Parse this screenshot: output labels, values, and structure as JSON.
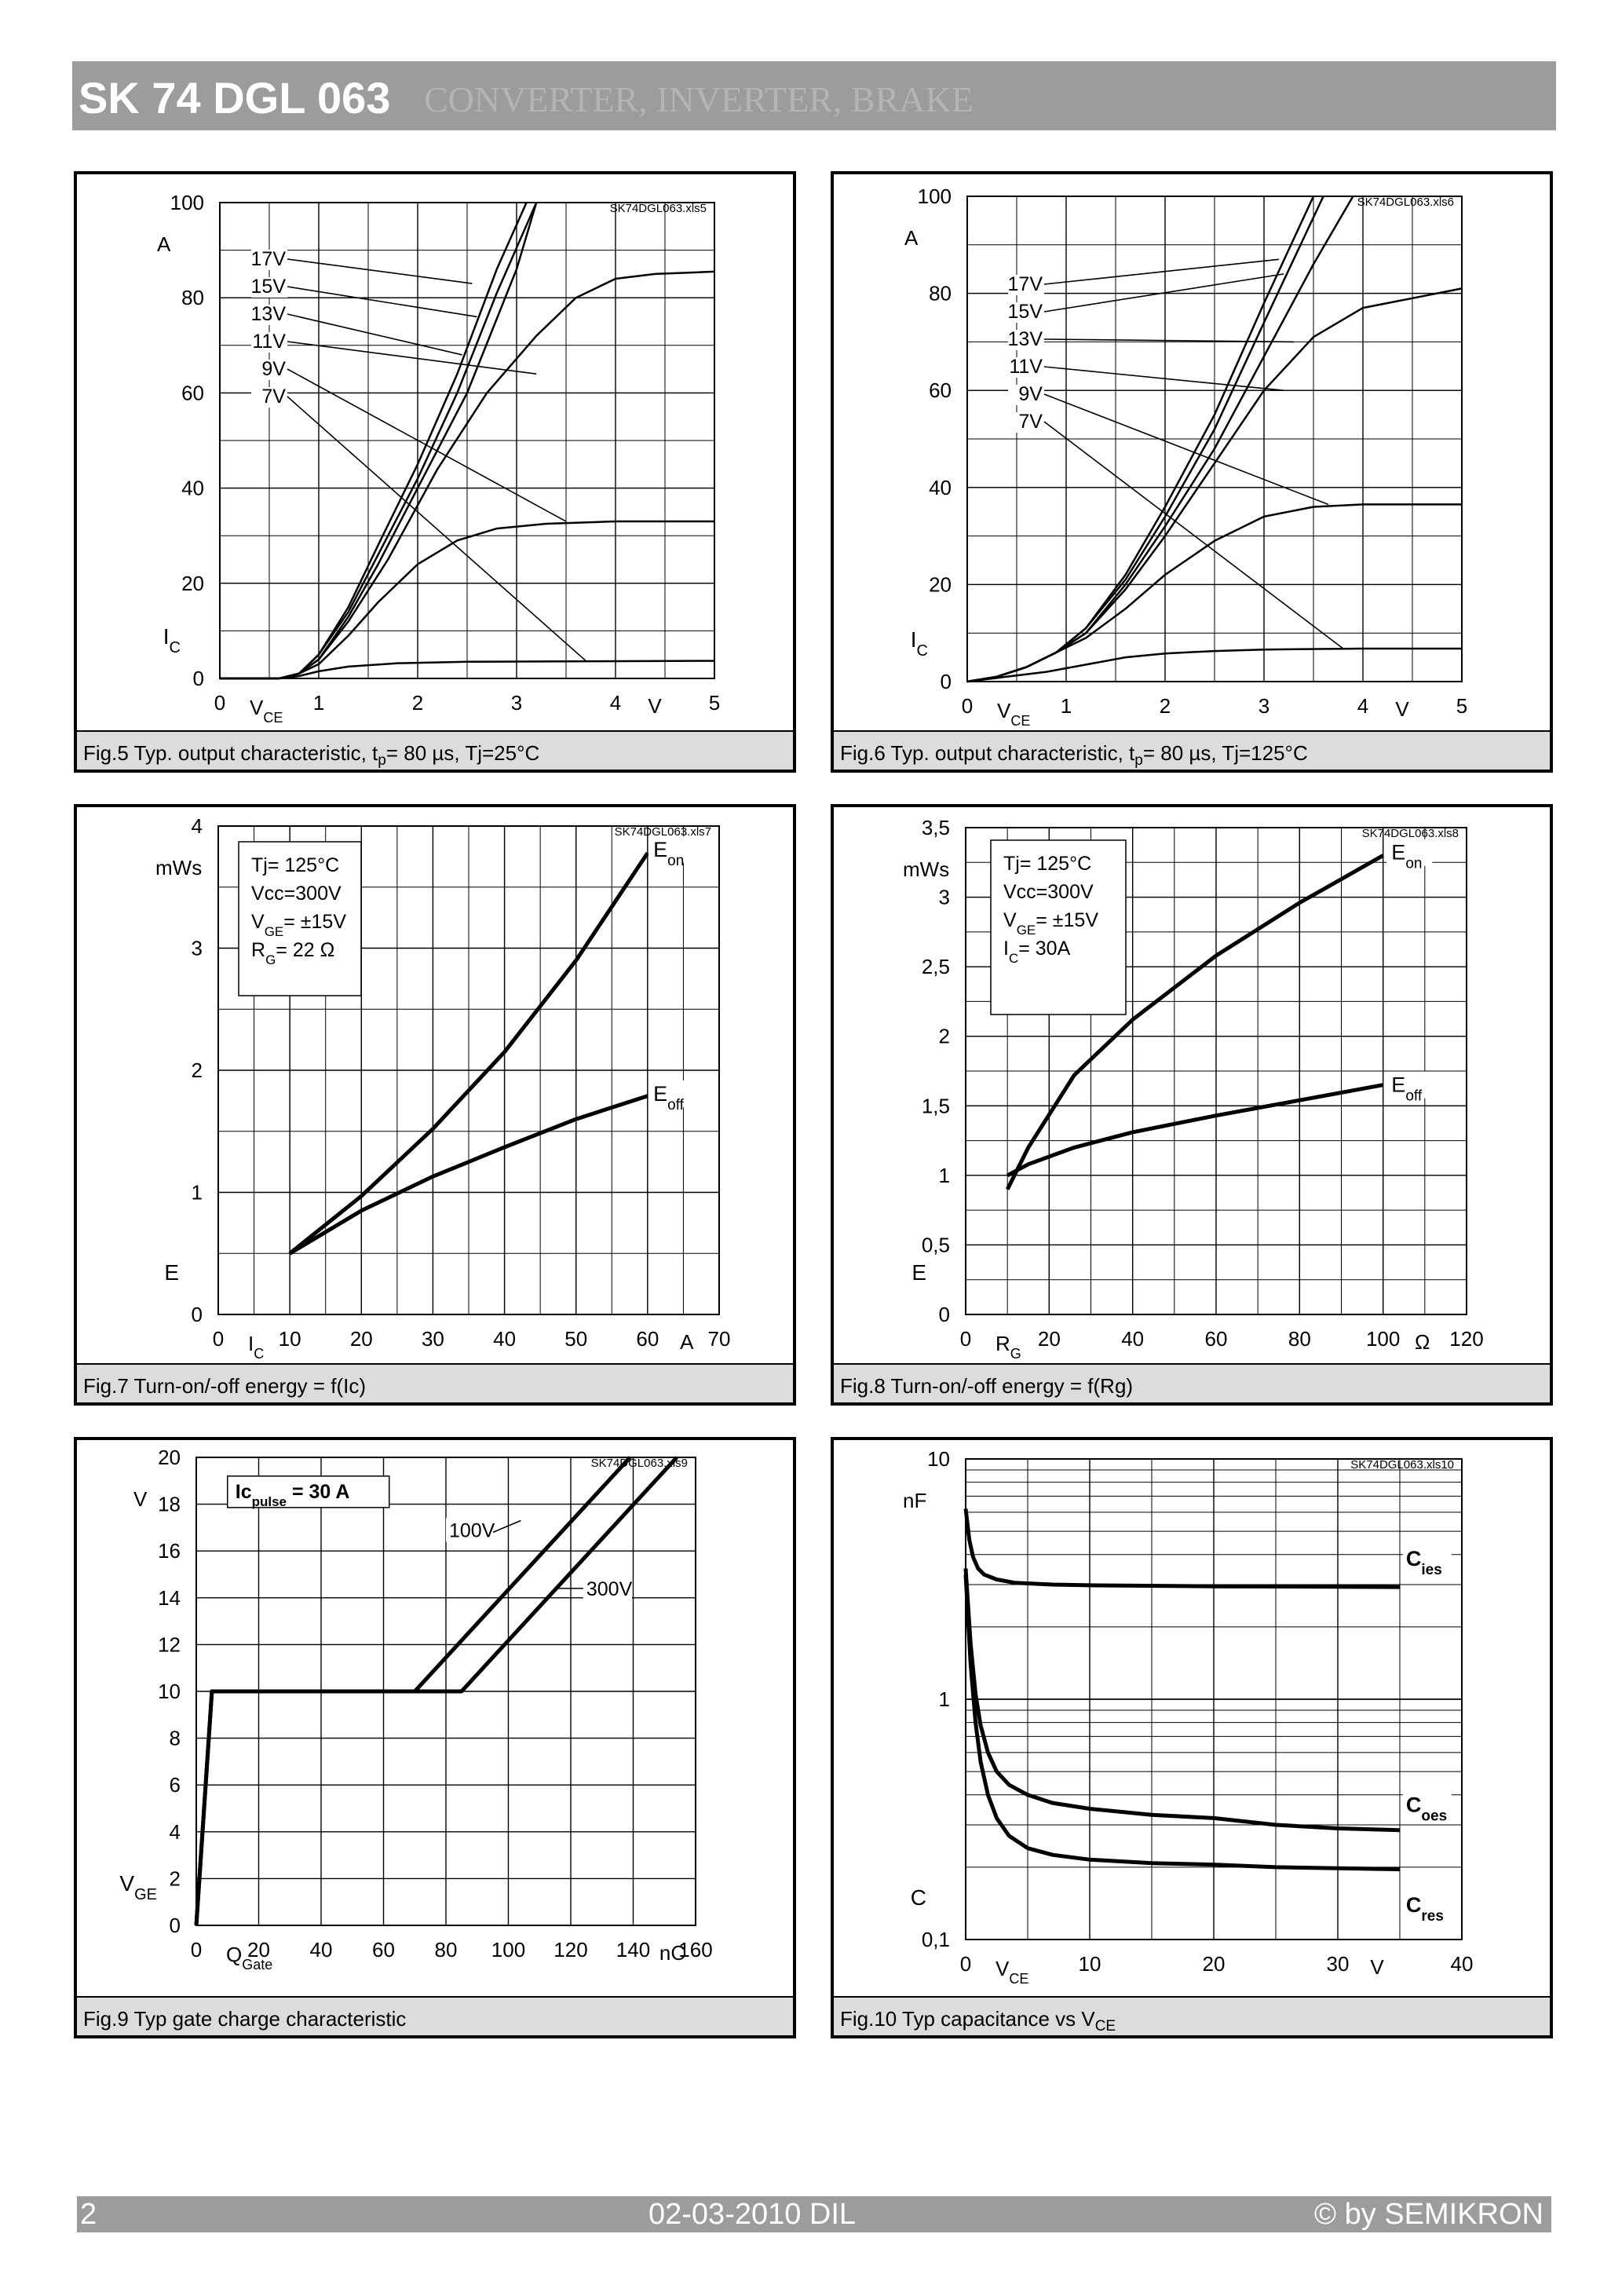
{
  "header": {
    "model": "SK 74 DGL 063",
    "title": "CONVERTER, INVERTER, BRAKE"
  },
  "footer": {
    "page": "2",
    "date": "02-03-2010  DIL",
    "copyright": "© by SEMIKRON"
  },
  "colors": {
    "header_bg": "#9c9c9c",
    "caption_bg": "#dcdcdc",
    "grid": "#000000"
  },
  "charts": [
    {
      "id": "fig5",
      "file_tag": "SK74DGL063.xls5",
      "caption": "Fig.5 Typ. output characteristic, t",
      "caption_sub": "p",
      "caption_tail": "= 80 µs, Tj=25°C",
      "y_unit": "A",
      "y_label": "I",
      "y_label_sub": "C",
      "x_unit": "V",
      "x_label": "V",
      "x_label_sub": "CE",
      "callouts": [
        "17V",
        "15V",
        "13V",
        "11V",
        "9V",
        "7V"
      ]
    },
    {
      "id": "fig6",
      "file_tag": "SK74DGL063.xls6",
      "caption": "Fig.6 Typ. output characteristic, t",
      "caption_sub": "p",
      "caption_tail": "= 80 µs, Tj=125°C",
      "y_unit": "A",
      "y_label": "I",
      "y_label_sub": "C",
      "x_unit": "V",
      "x_label": "V",
      "x_label_sub": "CE",
      "callouts": [
        "17V",
        "15V",
        "13V",
        "11V",
        "9V",
        "7V"
      ]
    },
    {
      "id": "fig7",
      "file_tag": "SK74DGL063.xls7",
      "caption": "Fig.7 Turn-on/-off energy = f(Ic)",
      "y_unit": "mWs",
      "y_label": "E",
      "x_unit": "A",
      "x_label": "I",
      "x_label_sub": "C",
      "legend": [
        "Tj= 125°C",
        "Vcc=300V",
        "V|GE|= ±15V",
        "R|G|= 22 Ω"
      ],
      "series_labels": [
        {
          "main": "E",
          "sub": "on"
        },
        {
          "main": "E",
          "sub": "off"
        }
      ]
    },
    {
      "id": "fig8",
      "file_tag": "SK74DGL063.xls8",
      "caption": "Fig.8 Turn-on/-off energy = f(Rg)",
      "y_unit": "mWs",
      "y_label": "E",
      "x_unit": "Ω",
      "x_label": "R",
      "x_label_sub": "G",
      "legend": [
        "Tj= 125°C",
        "Vcc=300V",
        "V|GE|= ±15V",
        "I|C|=  30A"
      ],
      "series_labels": [
        {
          "main": "E",
          "sub": "on"
        },
        {
          "main": "E",
          "sub": "off"
        }
      ]
    },
    {
      "id": "fig9",
      "file_tag": "SK74DGL063.xls9",
      "caption": "Fig.9 Typ gate charge characteristic",
      "y_unit": "V",
      "y_label": "V",
      "y_label_sub": "GE",
      "x_unit": "nC",
      "x_label": "Q",
      "x_label_sub": "Gate",
      "legend_box": {
        "main": "Ic",
        "sub": "pulse",
        "tail": " = 30 A"
      },
      "callouts": [
        "100V",
        "300V"
      ]
    },
    {
      "id": "fig10",
      "file_tag": "SK74DGL063.xls10",
      "caption": "Fig.10 Typ capacitance vs V",
      "caption_sub": "CE",
      "caption_tail": "",
      "y_unit": "nF",
      "y_label": "C",
      "x_unit": "V",
      "x_label": "V",
      "x_label_sub": "CE",
      "series_labels": [
        {
          "main": "C",
          "sub": "ies"
        },
        {
          "main": "C",
          "sub": "oes"
        },
        {
          "main": "C",
          "sub": "res"
        }
      ]
    }
  ],
  "chart_data": [
    {
      "id": "fig5",
      "type": "line",
      "title": "Typ. output characteristic, tp = 80 µs, Tj=25°C",
      "xlabel": "VCE (V)",
      "ylabel": "IC (A)",
      "xlim": [
        0,
        5
      ],
      "ylim": [
        0,
        100
      ],
      "xticks": [
        0,
        1,
        2,
        3,
        4,
        5
      ],
      "yticks": [
        0,
        20,
        40,
        60,
        80,
        100
      ],
      "x_tick_labels": [
        "0",
        "1",
        "2",
        "3",
        "4",
        "5"
      ],
      "y_tick_labels": [
        "0",
        "20",
        "40",
        "60",
        "80",
        "100"
      ],
      "x_minor": 0.5,
      "y_minor": 10,
      "series": [
        {
          "name": "17V",
          "x": [
            0,
            0.6,
            0.8,
            1.0,
            1.3,
            1.6,
            2.0,
            2.4,
            2.8,
            3.1
          ],
          "y": [
            0,
            0,
            1,
            5,
            15,
            28,
            45,
            64,
            86,
            100
          ]
        },
        {
          "name": "15V",
          "x": [
            0,
            0.6,
            0.8,
            1.0,
            1.3,
            1.6,
            2.0,
            2.4,
            2.8,
            3.2
          ],
          "y": [
            0,
            0,
            1,
            5,
            14,
            26,
            42,
            60,
            81,
            100
          ]
        },
        {
          "name": "13V",
          "x": [
            0,
            0.6,
            0.8,
            1.0,
            1.3,
            1.6,
            2.0,
            2.5,
            3.0,
            3.2
          ],
          "y": [
            0,
            0,
            1,
            4,
            13,
            24,
            40,
            60,
            86,
            100
          ]
        },
        {
          "name": "11V",
          "x": [
            0,
            0.6,
            0.8,
            1.0,
            1.3,
            1.7,
            2.2,
            2.7,
            3.2,
            3.6,
            4.0,
            4.4,
            5.0
          ],
          "y": [
            0,
            0,
            1,
            4,
            12,
            25,
            44,
            60,
            72,
            80,
            84,
            85,
            85.5
          ]
        },
        {
          "name": "9V",
          "x": [
            0,
            0.6,
            0.8,
            1.0,
            1.3,
            1.6,
            2.0,
            2.4,
            2.8,
            3.3,
            4.0,
            5.0
          ],
          "y": [
            0,
            0,
            1,
            3,
            9,
            16,
            24,
            29,
            31.5,
            32.5,
            33,
            33
          ]
        },
        {
          "name": "7V",
          "x": [
            0,
            0.6,
            0.8,
            1.0,
            1.3,
            1.8,
            2.5,
            3.5,
            5.0
          ],
          "y": [
            0,
            0,
            0.5,
            1.5,
            2.5,
            3.2,
            3.5,
            3.6,
            3.7
          ]
        }
      ]
    },
    {
      "id": "fig6",
      "type": "line",
      "title": "Typ. output characteristic, tp = 80 µs, Tj=125°C",
      "xlabel": "VCE (V)",
      "ylabel": "IC (A)",
      "xlim": [
        0,
        5
      ],
      "ylim": [
        0,
        100
      ],
      "xticks": [
        0,
        1,
        2,
        3,
        4,
        5
      ],
      "yticks": [
        0,
        20,
        40,
        60,
        80,
        100
      ],
      "x_tick_labels": [
        "0",
        "1",
        "2",
        "3",
        "4",
        "5"
      ],
      "y_tick_labels": [
        "0",
        "20",
        "40",
        "60",
        "80",
        "100"
      ],
      "x_minor": 0.5,
      "y_minor": 10,
      "series": [
        {
          "name": "17V",
          "x": [
            0,
            0.3,
            0.6,
            0.9,
            1.2,
            1.6,
            2.0,
            2.5,
            3.0,
            3.5
          ],
          "y": [
            0,
            1,
            3,
            6,
            11,
            22,
            36,
            55,
            78,
            100
          ]
        },
        {
          "name": "15V",
          "x": [
            0,
            0.3,
            0.6,
            0.9,
            1.2,
            1.6,
            2.0,
            2.5,
            3.0,
            3.6
          ],
          "y": [
            0,
            1,
            3,
            6,
            11,
            21,
            34,
            52,
            74,
            100
          ]
        },
        {
          "name": "13V",
          "x": [
            0,
            0.3,
            0.6,
            0.9,
            1.2,
            1.6,
            2.0,
            2.5,
            3.0,
            3.5,
            3.9
          ],
          "y": [
            0,
            1,
            3,
            6,
            10,
            20,
            32,
            48,
            67,
            86,
            100
          ]
        },
        {
          "name": "11V",
          "x": [
            0,
            0.3,
            0.6,
            0.9,
            1.2,
            1.6,
            2.0,
            2.5,
            3.0,
            3.5,
            4.0,
            4.5,
            5.0
          ],
          "y": [
            0,
            1,
            3,
            6,
            10,
            19,
            30,
            45,
            60,
            71,
            77,
            79,
            81
          ]
        },
        {
          "name": "9V",
          "x": [
            0,
            0.3,
            0.6,
            0.9,
            1.2,
            1.6,
            2.0,
            2.5,
            3.0,
            3.5,
            4.0,
            5.0
          ],
          "y": [
            0,
            1,
            3,
            6,
            9,
            15,
            22,
            29,
            34,
            36,
            36.5,
            36.5
          ]
        },
        {
          "name": "7V",
          "x": [
            0,
            0.4,
            0.8,
            1.2,
            1.6,
            2.0,
            2.5,
            3.0,
            4.0,
            5.0
          ],
          "y": [
            0,
            1,
            2,
            3.5,
            5,
            5.8,
            6.3,
            6.6,
            6.8,
            6.8
          ]
        }
      ]
    },
    {
      "id": "fig7",
      "type": "line",
      "title": "Turn-on/-off energy = f(Ic)",
      "xlabel": "IC (A)",
      "ylabel": "E (mWs)",
      "xlim": [
        0,
        70
      ],
      "ylim": [
        0,
        4
      ],
      "xticks": [
        0,
        10,
        20,
        30,
        40,
        50,
        60,
        70
      ],
      "yticks": [
        0,
        1,
        2,
        3,
        4
      ],
      "x_tick_labels": [
        "0",
        "10",
        "20",
        "30",
        "40",
        "50",
        "60",
        "70"
      ],
      "y_tick_labels": [
        "0",
        "1",
        "2",
        "3",
        "4"
      ],
      "x_minor": 5,
      "y_minor": 0.5,
      "series": [
        {
          "name": "Eon",
          "x": [
            10,
            20,
            30,
            40,
            50,
            60
          ],
          "y": [
            0.5,
            0.97,
            1.52,
            2.15,
            2.9,
            3.78
          ]
        },
        {
          "name": "Eoff",
          "x": [
            10,
            20,
            30,
            40,
            50,
            60
          ],
          "y": [
            0.5,
            0.85,
            1.13,
            1.37,
            1.6,
            1.79
          ]
        }
      ]
    },
    {
      "id": "fig8",
      "type": "line",
      "title": "Turn-on/-off energy = f(Rg)",
      "xlabel": "RG (Ω)",
      "ylabel": "E (mWs)",
      "xlim": [
        0,
        120
      ],
      "ylim": [
        0,
        3.5
      ],
      "xticks": [
        0,
        20,
        40,
        60,
        80,
        100,
        120
      ],
      "yticks": [
        0,
        0.5,
        1,
        1.5,
        2,
        2.5,
        3,
        3.5
      ],
      "x_tick_labels": [
        "0",
        "20",
        "40",
        "60",
        "80",
        "100",
        "120"
      ],
      "y_tick_labels": [
        "0",
        "0,5",
        "1",
        "1,5",
        "2",
        "2,5",
        "3",
        "3,5"
      ],
      "x_minor": 10,
      "y_minor": 0.25,
      "series": [
        {
          "name": "Eon",
          "x": [
            10,
            15,
            26,
            40,
            60,
            80,
            100
          ],
          "y": [
            0.9,
            1.2,
            1.72,
            2.12,
            2.58,
            2.96,
            3.3
          ]
        },
        {
          "name": "Eoff",
          "x": [
            10,
            15,
            26,
            40,
            60,
            80,
            100
          ],
          "y": [
            1.0,
            1.08,
            1.2,
            1.31,
            1.43,
            1.54,
            1.65
          ]
        }
      ]
    },
    {
      "id": "fig9",
      "type": "line",
      "title": "Typ gate charge characteristic",
      "xlabel": "QGate (nC)",
      "ylabel": "VGE (V)",
      "xlim": [
        0,
        160
      ],
      "ylim": [
        0,
        20
      ],
      "xticks": [
        0,
        20,
        40,
        60,
        80,
        100,
        120,
        140,
        160
      ],
      "yticks": [
        0,
        2,
        4,
        6,
        8,
        10,
        12,
        14,
        16,
        18,
        20
      ],
      "x_tick_labels": [
        "0",
        "20",
        "40",
        "60",
        "80",
        "100",
        "120",
        "140",
        "160"
      ],
      "y_tick_labels": [
        "0",
        "2",
        "4",
        "6",
        "8",
        "10",
        "12",
        "14",
        "16",
        "18",
        "20"
      ],
      "series": [
        {
          "name": "100V",
          "x": [
            0,
            5,
            70,
            139
          ],
          "y": [
            0,
            10,
            10,
            20
          ]
        },
        {
          "name": "300V",
          "x": [
            0,
            5,
            85,
            154
          ],
          "y": [
            0,
            10,
            10,
            20
          ]
        }
      ]
    },
    {
      "id": "fig10",
      "type": "line",
      "title": "Typ capacitance vs VCE",
      "xlabel": "VCE (V)",
      "ylabel": "C (nF)",
      "xlim": [
        0,
        40
      ],
      "ylim": [
        0.1,
        10
      ],
      "yscale": "log",
      "xticks": [
        0,
        10,
        20,
        30,
        40
      ],
      "yticks": [
        0.1,
        1,
        10
      ],
      "x_tick_labels": [
        "0",
        "10",
        "20",
        "30",
        "40"
      ],
      "y_tick_labels": [
        "0,1",
        "1",
        "10"
      ],
      "x_minor": 5,
      "series": [
        {
          "name": "Cies",
          "x": [
            0,
            0.3,
            0.6,
            1,
            1.5,
            2.5,
            4,
            7,
            10,
            20,
            30,
            35
          ],
          "y": [
            6.2,
            4.6,
            3.9,
            3.5,
            3.3,
            3.15,
            3.05,
            3.0,
            2.98,
            2.95,
            2.94,
            2.93
          ]
        },
        {
          "name": "Coes",
          "x": [
            0,
            0.4,
            0.8,
            1.2,
            1.8,
            2.5,
            3.5,
            5,
            7,
            10,
            15,
            20,
            25,
            30,
            35
          ],
          "y": [
            3.5,
            1.7,
            1.05,
            0.78,
            0.6,
            0.5,
            0.44,
            0.4,
            0.37,
            0.35,
            0.33,
            0.32,
            0.3,
            0.29,
            0.285
          ]
        },
        {
          "name": "Cres",
          "x": [
            0,
            0.4,
            0.8,
            1.2,
            1.8,
            2.5,
            3.5,
            5,
            7,
            10,
            15,
            20,
            25,
            30,
            35
          ],
          "y": [
            3.3,
            1.4,
            0.8,
            0.55,
            0.4,
            0.32,
            0.27,
            0.24,
            0.225,
            0.215,
            0.208,
            0.205,
            0.2,
            0.198,
            0.196
          ]
        }
      ]
    }
  ]
}
